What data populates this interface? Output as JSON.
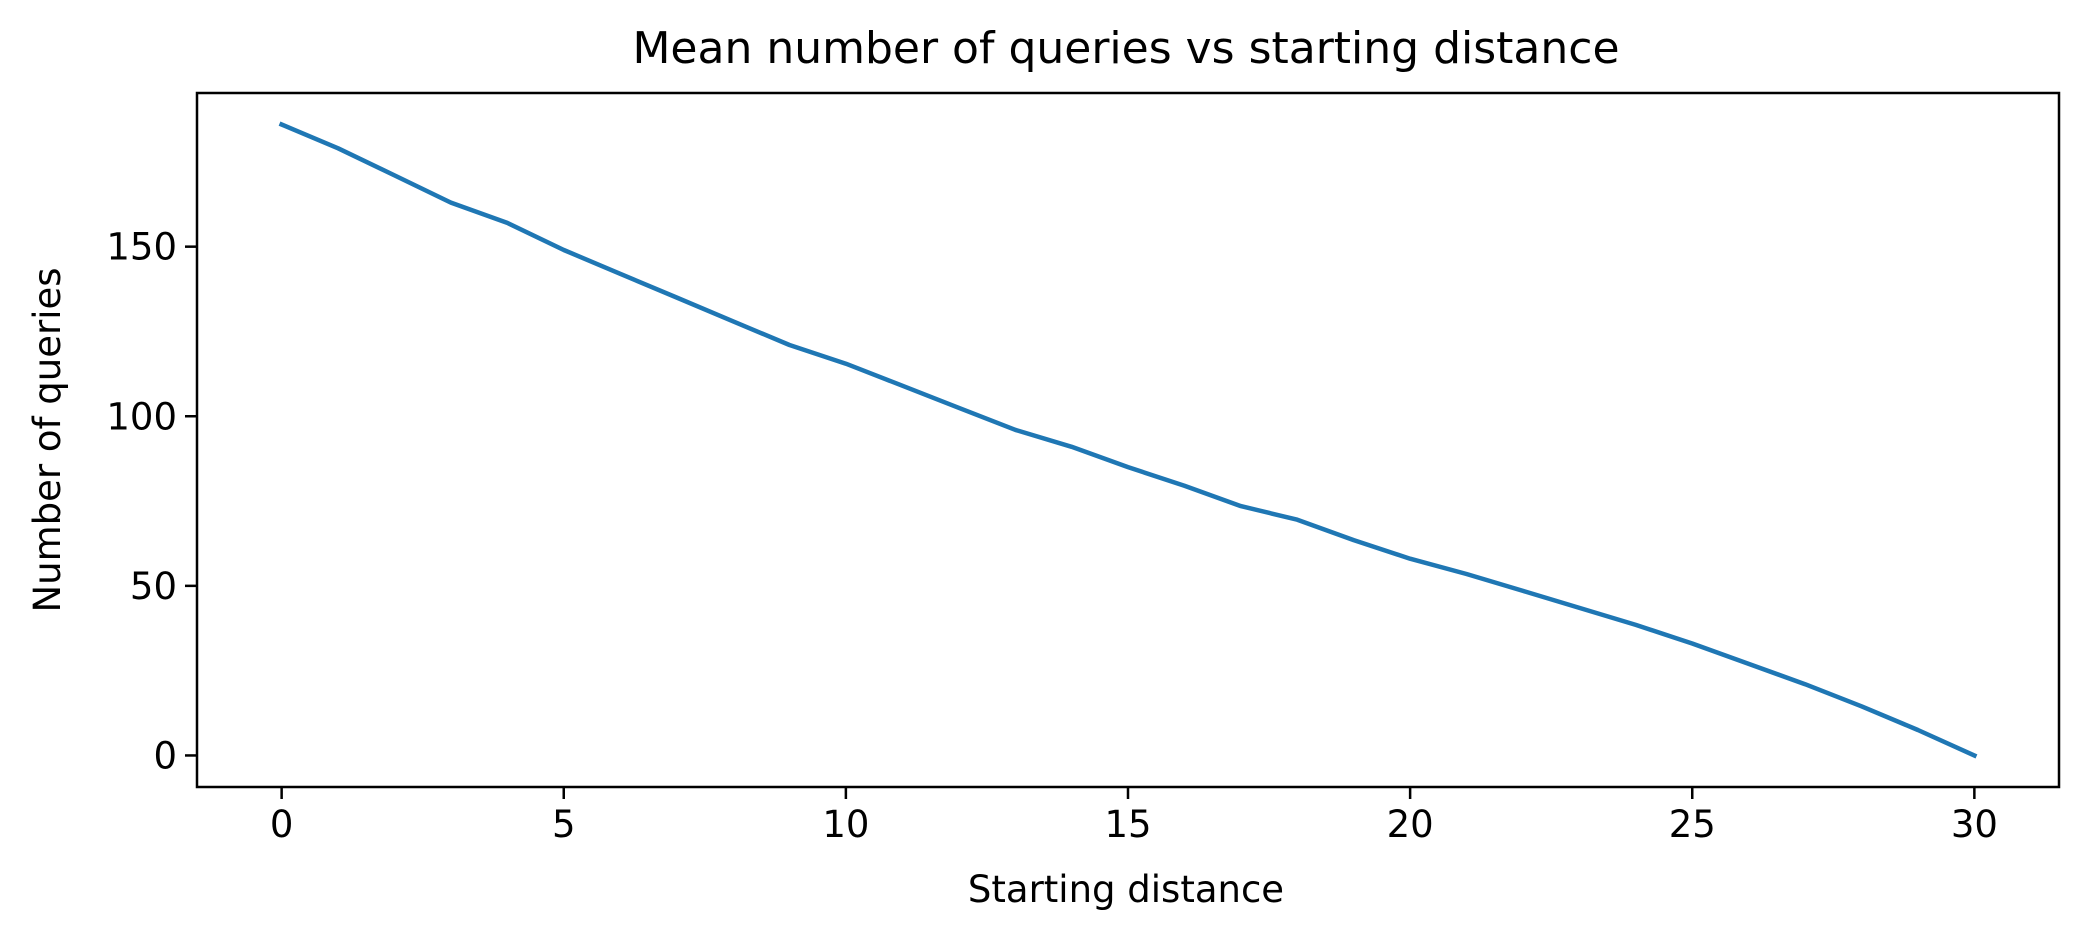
{
  "chart_data": {
    "type": "line",
    "title": "Mean number of queries vs starting distance",
    "xlabel": "Starting distance",
    "ylabel": "Number of queries",
    "xlim": [
      -1.5,
      31.5
    ],
    "ylim": [
      -9.3,
      195.3
    ],
    "xticks": [
      0,
      5,
      10,
      15,
      20,
      25,
      30
    ],
    "yticks": [
      0,
      50,
      100,
      150
    ],
    "grid": false,
    "legend": "none",
    "series": [
      {
        "color": "#1f77b4",
        "x": [
          0,
          1,
          2,
          3,
          4,
          5,
          6,
          7,
          8,
          9,
          10,
          11,
          12,
          13,
          14,
          15,
          16,
          17,
          18,
          19,
          20,
          21,
          22,
          23,
          24,
          25,
          26,
          27,
          28,
          29,
          30
        ],
        "y": [
          186,
          179,
          171,
          163,
          157,
          149,
          142,
          135,
          128,
          121,
          115.5,
          109,
          102.5,
          96,
          91,
          85,
          79.5,
          73.5,
          69.5,
          63.5,
          58,
          53.5,
          48.5,
          43.5,
          38.5,
          33,
          27,
          21,
          14.5,
          7.5,
          0
        ]
      }
    ]
  }
}
